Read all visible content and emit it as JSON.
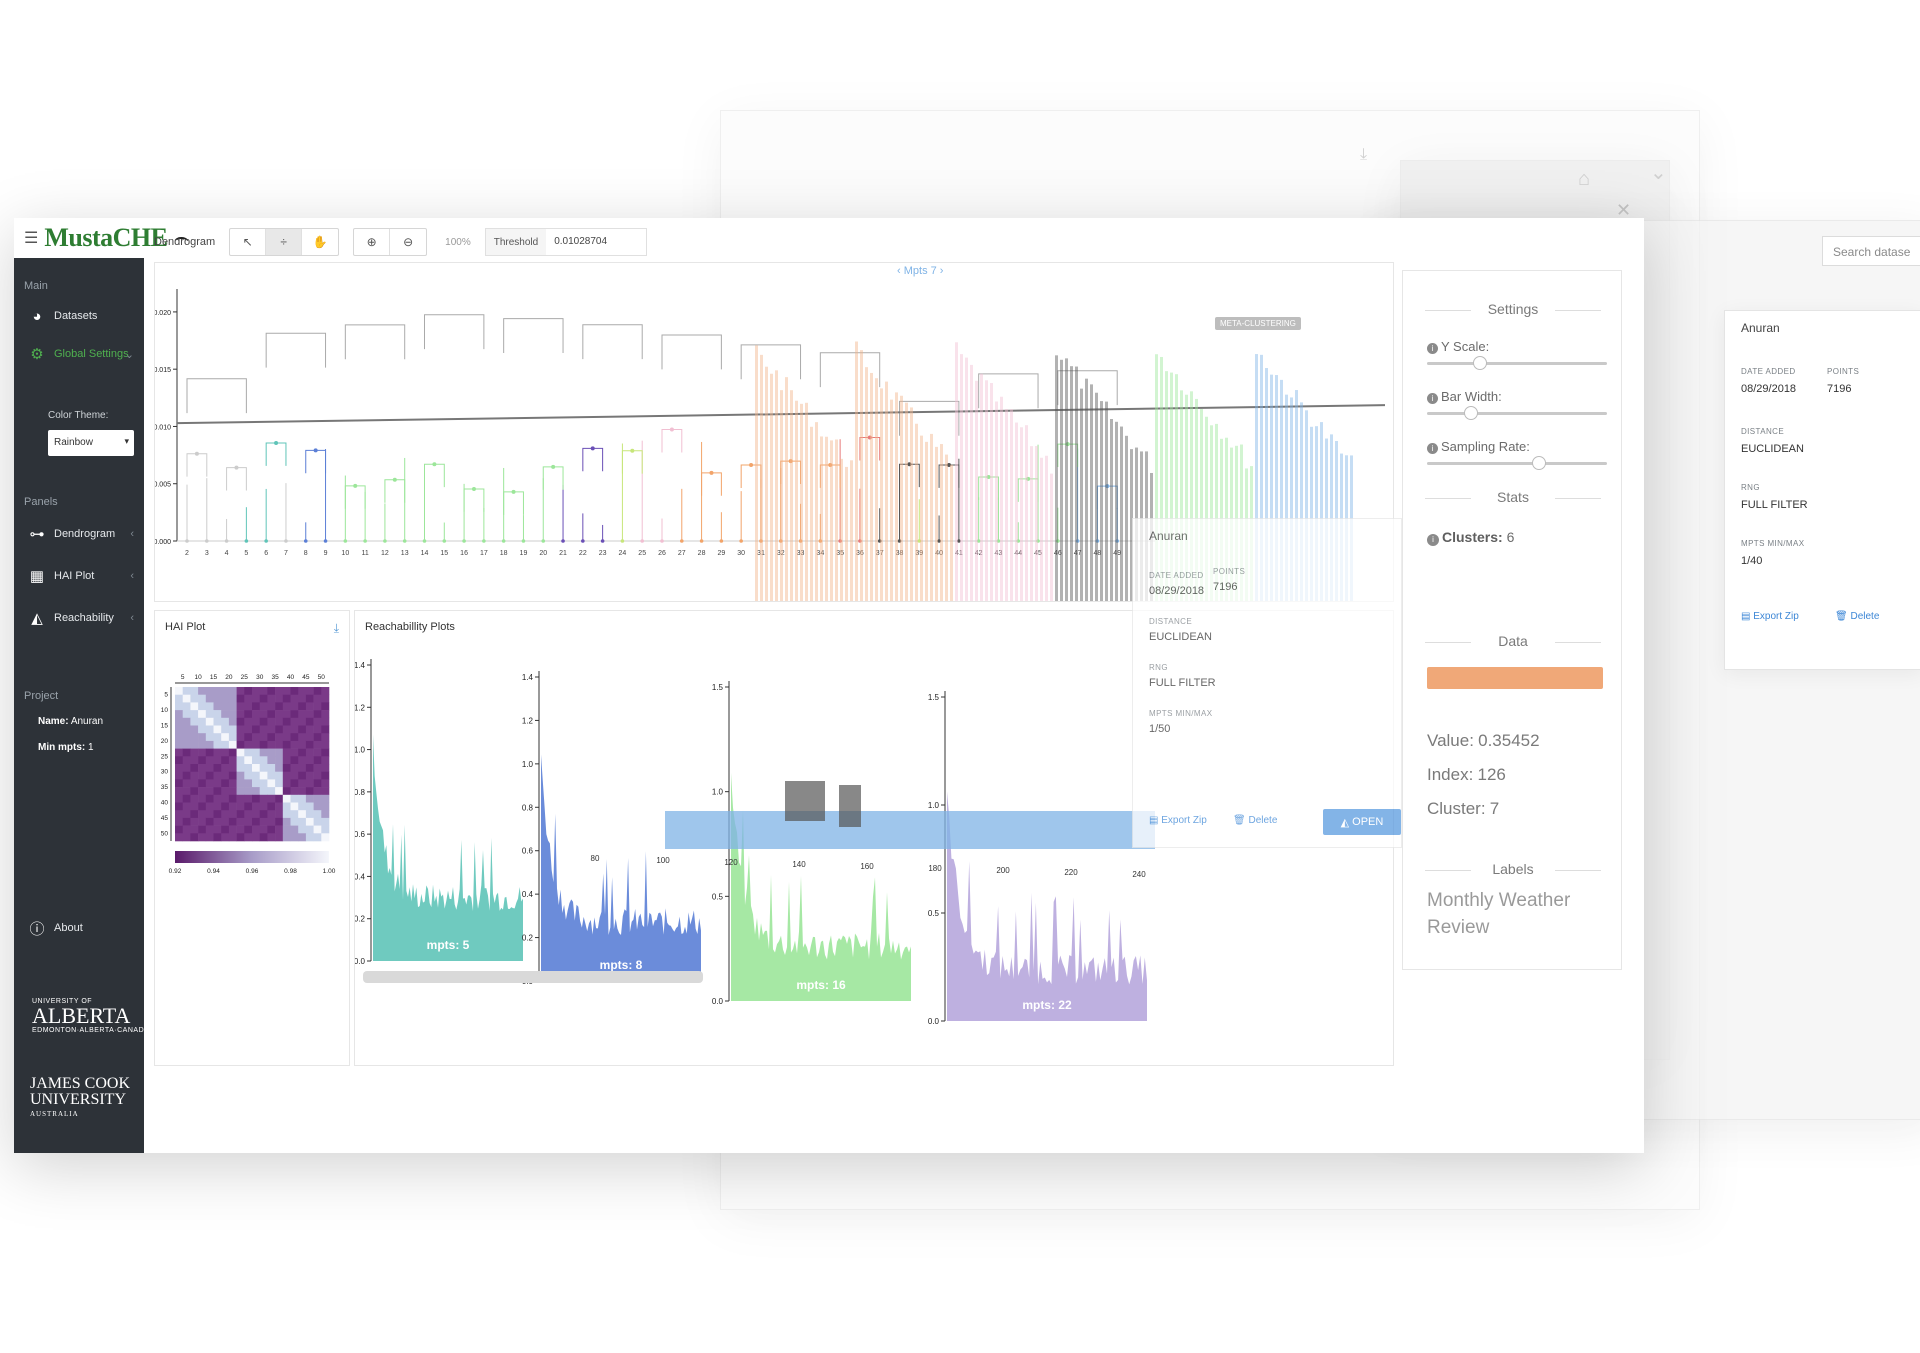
{
  "app": {
    "brand": "MustaCHE",
    "threshold_label": "Threshold",
    "threshold_value": "0.01028704",
    "zoom": "100%",
    "mpts_nav": "Mpts 7",
    "dendrogram_label": "Dendrogram"
  },
  "sidebar": {
    "section_main": "Main",
    "item_datasets": "Datasets",
    "item_global_settings": "Global Settings",
    "color_theme_label": "Color Theme:",
    "color_theme_value": "Rainbow",
    "section_panels": "Panels",
    "item_dendrogram": "Dendrogram",
    "item_hai": "HAI Plot",
    "item_reach": "Reachability",
    "section_project": "Project",
    "project_name_label": "Name:",
    "project_name": "Anuran",
    "min_mpts_label": "Min mpts:",
    "min_mpts": "1",
    "item_about": "About",
    "ua_small_top": "UNIVERSITY OF",
    "ua_big": "ALBERTA",
    "ua_small_bottom": "EDMONTON·ALBERTA·CANADA",
    "jcu_line1": "JAMES COOK",
    "jcu_line2": "UNIVERSITY",
    "jcu_small": "AUSTRALIA"
  },
  "panels": {
    "hai_title": "HAI Plot",
    "reach_title": "Reachabillity Plots",
    "meta_badge": "META-CLUSTERING"
  },
  "card_front": {
    "name": "Anuran",
    "date_label": "DATE ADDED",
    "date": "08/29/2018",
    "points_label": "POINTS",
    "points": "7196",
    "distance_label": "DISTANCE",
    "distance": "EUCLIDEAN",
    "rng_label": "RNG",
    "rng": "FULL FILTER",
    "mpts_label": "MPTS MIN/MAX",
    "mpts": "1/50",
    "export": "Export Zip",
    "delete": "Delete",
    "open": "OPEN"
  },
  "card_right": {
    "name": "Anuran",
    "date_label": "DATE ADDED",
    "date": "08/29/2018",
    "points_label": "POINTS",
    "points": "7196",
    "distance_label": "DISTANCE",
    "distance": "EUCLIDEAN",
    "rng_label": "RNG",
    "rng": "FULL FILTER",
    "mpts_label": "MPTS MIN/MAX",
    "mpts": "1/40",
    "export": "Export Zip",
    "delete": "Delete"
  },
  "settings": {
    "title": "Settings",
    "y_scale": "Y Scale:",
    "bar_width": "Bar Width:",
    "sampling_rate": "Sampling Rate:",
    "y_scale_level": 0.28,
    "bar_width_level": 0.22,
    "sampling_rate_level": 0.63,
    "stats_title": "Stats",
    "clusters_label": "Clusters:",
    "clusters_value": "6",
    "data_title": "Data",
    "value_label": "Value:",
    "value": "0.35452",
    "index_label": "Index:",
    "index": "126",
    "cluster_label": "Cluster:",
    "cluster": "7",
    "labels_title": "Labels",
    "labels_text": "Monthly Weather Review"
  },
  "search_placeholder": "Search datase",
  "colors": {
    "brand_green": "#2e7d32",
    "sidebar_bg": "#2d3238",
    "accent_blue": "#5a9be0",
    "teal": "#5fc4b8",
    "blue": "#5b7fd6",
    "green": "#9ce69a",
    "purple": "#b7a7dd",
    "orange": "#f2b48a",
    "pink": "#f1bfd2",
    "dark": "#555555"
  },
  "chart_data": [
    {
      "type": "bar",
      "name": "dendrogram",
      "y_ticks": [
        "0.020",
        "0.015",
        "0.010",
        "0.005",
        "0.000"
      ],
      "ylim": [
        0,
        0.022
      ],
      "categories": [
        "2",
        "3",
        "4",
        "5",
        "6",
        "7",
        "8",
        "9",
        "10",
        "11",
        "12",
        "13",
        "14",
        "15",
        "16",
        "17",
        "18",
        "19",
        "20",
        "21",
        "22",
        "23",
        "24",
        "25",
        "26",
        "27",
        "28",
        "29",
        "30",
        "31",
        "32",
        "33",
        "34",
        "35",
        "36",
        "37",
        "38",
        "39",
        "40",
        "41",
        "42",
        "43",
        "44",
        "45",
        "46",
        "47",
        "48",
        "49"
      ],
      "threshold": 0.01028704
    },
    {
      "type": "heatmap",
      "name": "hai_plot",
      "x_ticks": [
        "5",
        "10",
        "15",
        "20",
        "25",
        "30",
        "35",
        "40",
        "45",
        "50"
      ],
      "y_ticks": [
        "5",
        "10",
        "15",
        "20",
        "25",
        "30",
        "35",
        "40",
        "45",
        "50"
      ],
      "colorbar_ticks": [
        "0.92",
        "0.94",
        "0.96",
        "0.98",
        "1.00"
      ]
    },
    {
      "type": "area",
      "name": "reachability_plots",
      "plots": [
        {
          "label": "mpts: 5",
          "y_ticks": [
            "1.4",
            "1.2",
            "1.0",
            "0.8",
            "0.6",
            "0.4",
            "0.2",
            "0.0"
          ]
        },
        {
          "label": "mpts: 8",
          "y_ticks": [
            "1.4",
            "1.2",
            "1.0",
            "0.8",
            "0.6",
            "0.4",
            "0.2",
            "0.0"
          ]
        },
        {
          "label": "mpts: 16",
          "y_ticks": [
            "1.5",
            "1.0",
            "0.5",
            "0.0"
          ]
        },
        {
          "label": "mpts: 22",
          "y_ticks": [
            "1.5",
            "1.0",
            "0.5",
            "0.0"
          ]
        }
      ],
      "x_ticks": [
        "80",
        "100",
        "120",
        "140",
        "160",
        "180",
        "200",
        "220",
        "240"
      ]
    }
  ]
}
